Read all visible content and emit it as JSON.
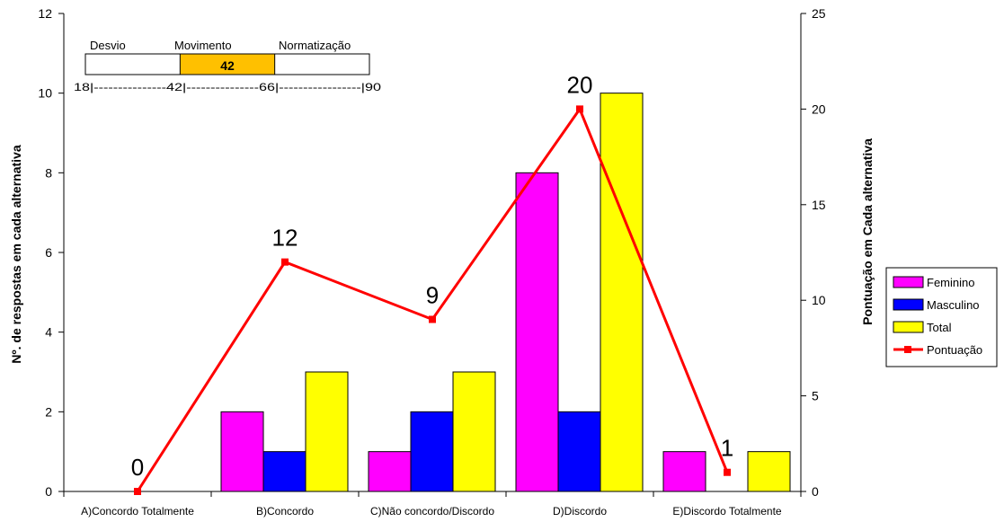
{
  "chart_data": {
    "type": "bar",
    "categories": [
      "A)Concordo Totalmente",
      "B)Concordo",
      "C)Não concordo/Discordo",
      "D)Discordo",
      "E)Discordo Totalmente"
    ],
    "series": [
      {
        "name": "Feminino",
        "values": [
          0,
          2,
          1,
          8,
          1
        ],
        "color": "#ff00ff"
      },
      {
        "name": "Masculino",
        "values": [
          0,
          1,
          2,
          2,
          0
        ],
        "color": "#0000ff"
      },
      {
        "name": "Total",
        "values": [
          0,
          3,
          3,
          10,
          1
        ],
        "color": "#ffff00"
      }
    ],
    "line_series": {
      "name": "Pontuação",
      "values": [
        0,
        12,
        9,
        20,
        1
      ],
      "labels": [
        "0",
        "12",
        "9",
        "20",
        "1"
      ],
      "color": "#ff0000",
      "axis": "right"
    },
    "ylabel": "Nº. de respostas em cada alternativa",
    "y2label": "Pontuação em Cada alternativa",
    "ylim": [
      0,
      12
    ],
    "y2lim": [
      0,
      25
    ],
    "yticks": [
      "0",
      "2",
      "4",
      "6",
      "8",
      "10",
      "12"
    ],
    "y2ticks": [
      "0",
      "5",
      "10",
      "15",
      "20",
      "25"
    ],
    "grid": false,
    "legend_position": "right",
    "scale_inset": {
      "labels": [
        "Desvio",
        "Movimento",
        "Normatização"
      ],
      "value": "42",
      "scale_text": "18|---------------42|---------------66|-----------------|90",
      "range": [
        18,
        90
      ],
      "marks": [
        18,
        42,
        66,
        90
      ],
      "highlight": [
        42,
        66
      ],
      "highlight_color": "#ffc000"
    }
  }
}
